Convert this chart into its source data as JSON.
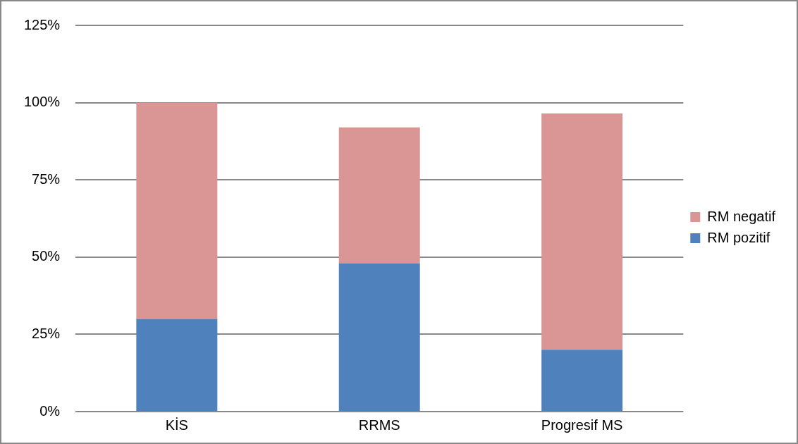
{
  "chart_data": {
    "type": "bar",
    "stacked": true,
    "categories": [
      "KİS",
      "RRMS",
      "Progresif MS"
    ],
    "series": [
      {
        "name": "RM pozitif",
        "color": "#4f81bd",
        "values": [
          30,
          48,
          20
        ]
      },
      {
        "name": "RM negatif",
        "color": "#d99694",
        "values": [
          70,
          44,
          76.5
        ]
      }
    ],
    "ylim": [
      0,
      125
    ],
    "yticks": [
      {
        "value": 0,
        "label": "0%"
      },
      {
        "value": 25,
        "label": "25%"
      },
      {
        "value": 50,
        "label": "50%"
      },
      {
        "value": 75,
        "label": "75%"
      },
      {
        "value": 100,
        "label": "100%"
      },
      {
        "value": 125,
        "label": "125%"
      }
    ],
    "grid": "y",
    "legend": "right"
  }
}
